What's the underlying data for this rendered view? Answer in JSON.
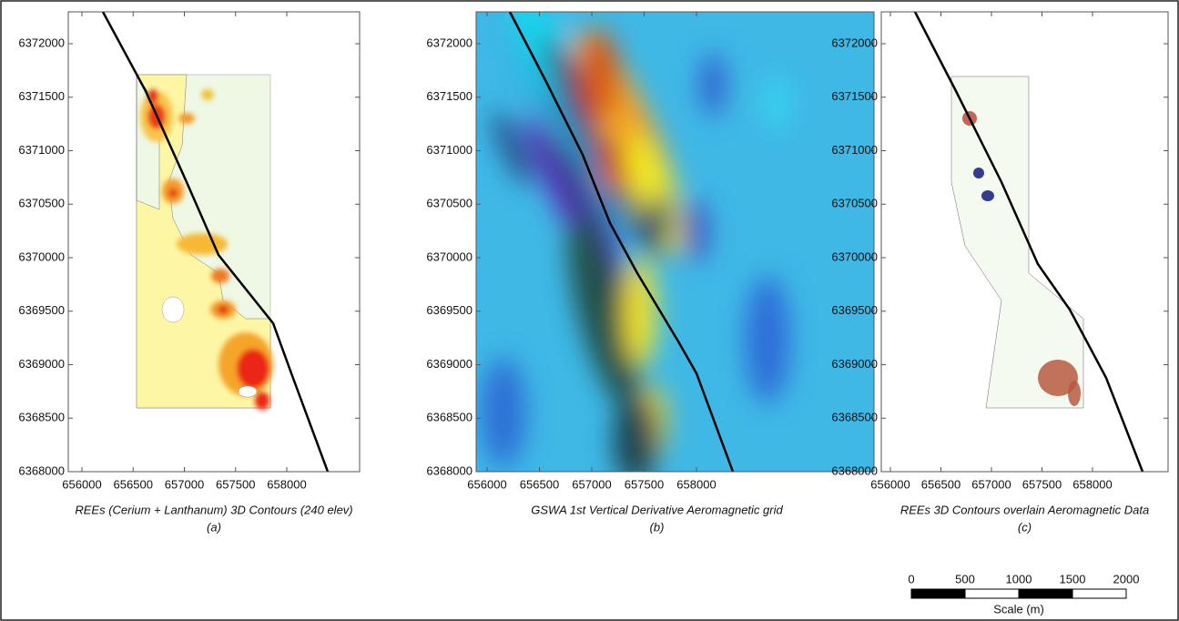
{
  "axes": {
    "xticks": [
      656000,
      656500,
      657000,
      657500,
      658000
    ],
    "yticks": [
      6372000,
      6371500,
      6371000,
      6370500,
      6370000,
      6369500,
      6369000,
      6368500,
      6368000
    ]
  },
  "panels": [
    {
      "caption": "REEs (Cerium + Lanthanum) 3D Contours (240 elev)",
      "label": "(a)"
    },
    {
      "caption": "GSWA 1st Vertical Derivative Aeromagnetic grid",
      "label": "(b)"
    },
    {
      "caption": "REEs 3D Contours overlain Aeromagnetic Data",
      "label": "(c)"
    }
  ],
  "scale_bar": {
    "ticks": [
      0,
      500,
      1000,
      1500,
      2000
    ],
    "title": "Scale (m)"
  }
}
